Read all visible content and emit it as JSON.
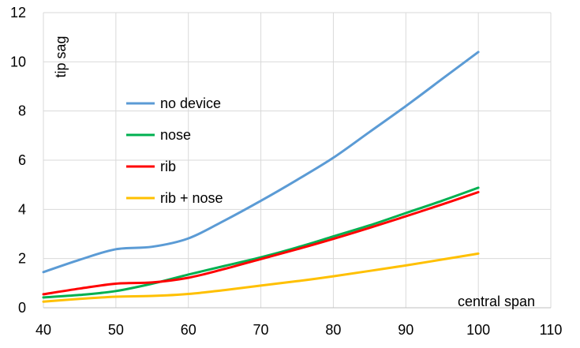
{
  "chart_data": {
    "type": "line",
    "xlabel": "central span",
    "ylabel": "tip sag",
    "xlim": [
      40,
      110
    ],
    "ylim": [
      0,
      12
    ],
    "xticks": [
      "40",
      "50",
      "60",
      "70",
      "80",
      "90",
      "100",
      "110"
    ],
    "yticks": [
      "0",
      "2",
      "4",
      "6",
      "8",
      "10",
      "12"
    ],
    "grid": true,
    "legend_position": "upper-left",
    "series": [
      {
        "name": "no device",
        "color": "#5B9BD5",
        "x": [
          40,
          45,
          50,
          55,
          60,
          65,
          70,
          75,
          80,
          85,
          90,
          95,
          100
        ],
        "y": [
          1.45,
          1.95,
          2.38,
          2.48,
          2.82,
          3.55,
          4.35,
          5.2,
          6.1,
          7.15,
          8.2,
          9.3,
          10.4
        ]
      },
      {
        "name": "nose",
        "color": "#00B050",
        "x": [
          40,
          45,
          50,
          55,
          60,
          65,
          70,
          75,
          80,
          85,
          90,
          95,
          100
        ],
        "y": [
          0.42,
          0.52,
          0.68,
          0.98,
          1.35,
          1.7,
          2.05,
          2.45,
          2.9,
          3.35,
          3.85,
          4.35,
          4.88
        ]
      },
      {
        "name": "rib",
        "color": "#FF0000",
        "x": [
          40,
          45,
          50,
          55,
          60,
          65,
          70,
          75,
          80,
          85,
          90,
          95,
          100
        ],
        "y": [
          0.55,
          0.78,
          0.98,
          1.03,
          1.22,
          1.58,
          1.98,
          2.38,
          2.8,
          3.25,
          3.72,
          4.2,
          4.7
        ]
      },
      {
        "name": "rib + nose",
        "color": "#FFC000",
        "x": [
          40,
          45,
          50,
          55,
          60,
          65,
          70,
          75,
          80,
          85,
          90,
          95,
          100
        ],
        "y": [
          0.25,
          0.36,
          0.45,
          0.48,
          0.56,
          0.72,
          0.9,
          1.08,
          1.28,
          1.5,
          1.72,
          1.96,
          2.2
        ]
      }
    ]
  }
}
